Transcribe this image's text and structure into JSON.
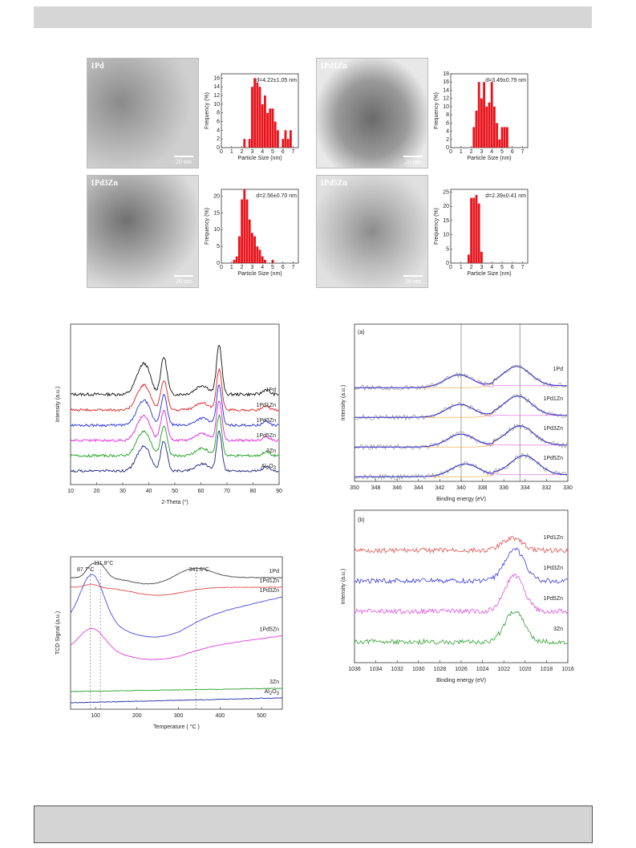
{
  "tem_panels": [
    {
      "label": "1Pd",
      "scale": "20 nm",
      "annotation": "d=4.22±1.05 nm",
      "chart_data": {
        "type": "bar",
        "xlabel": "Particle Size (nm)",
        "ylabel": "Frequency (%)",
        "xlim": [
          0,
          7.5
        ],
        "ylim": [
          0,
          17
        ],
        "xticks": [
          0,
          1,
          2,
          3,
          4,
          5,
          6,
          7
        ],
        "yticks": [
          0,
          2,
          4,
          6,
          8,
          10,
          12,
          14,
          16
        ],
        "x": [
          2.25,
          2.75,
          3.0,
          3.25,
          3.5,
          3.75,
          4.0,
          4.25,
          4.5,
          4.75,
          5.0,
          5.25,
          5.5,
          6.0,
          6.25,
          6.5,
          6.75
        ],
        "values": [
          2,
          2,
          14,
          16,
          15,
          14,
          10,
          12,
          8,
          9,
          9,
          6,
          4,
          2,
          4,
          2,
          4
        ]
      }
    },
    {
      "label": "1Pd1Zn",
      "scale": "20 nm",
      "annotation": "d=3.49±0.79 nm",
      "chart_data": {
        "type": "bar",
        "xlabel": "Particle Size (nm)",
        "ylabel": "Frequency (%)",
        "xlim": [
          0,
          7.5
        ],
        "ylim": [
          0,
          18
        ],
        "xticks": [
          0,
          1,
          2,
          3,
          4,
          5,
          6,
          7
        ],
        "yticks": [
          0,
          2,
          4,
          6,
          8,
          10,
          12,
          14,
          16,
          18
        ],
        "x": [
          2.25,
          2.5,
          2.75,
          3.0,
          3.25,
          3.5,
          3.75,
          4.0,
          4.25,
          4.5,
          4.75,
          5.0,
          5.25,
          5.5
        ],
        "values": [
          5,
          9,
          16,
          12,
          16,
          10,
          11,
          16,
          10,
          6,
          2,
          5,
          5,
          5
        ]
      }
    },
    {
      "label": "1Pd3Zn",
      "scale": "20 nm",
      "annotation": "d=2.56±0.70 nm",
      "chart_data": {
        "type": "bar",
        "xlabel": "Particle Size (nm)",
        "ylabel": "Frequency (%)",
        "xlim": [
          0,
          7.5
        ],
        "ylim": [
          0,
          22
        ],
        "xticks": [
          0,
          1,
          2,
          3,
          4,
          5,
          6,
          7
        ],
        "yticks": [
          0,
          5,
          10,
          15,
          20
        ],
        "x": [
          1.25,
          1.5,
          1.75,
          2.0,
          2.25,
          2.5,
          2.75,
          3.0,
          3.25,
          3.5,
          3.75,
          4.0,
          4.25,
          5.0
        ],
        "values": [
          1,
          2,
          8,
          19,
          22,
          19,
          13,
          9,
          8,
          5,
          4,
          2,
          1,
          1
        ]
      }
    },
    {
      "label": "1Pd5Zn",
      "scale": "20 nm",
      "annotation": "d=2.39±0.41 nm",
      "chart_data": {
        "type": "bar",
        "xlabel": "Particle Size (nm)",
        "ylabel": "Frequency (%)",
        "xlim": [
          0,
          7.5
        ],
        "ylim": [
          0,
          26
        ],
        "xticks": [
          0,
          1,
          2,
          3,
          4,
          5,
          6,
          7
        ],
        "yticks": [
          0,
          5,
          10,
          15,
          20,
          25
        ],
        "x": [
          1.75,
          2.0,
          2.25,
          2.5,
          2.75,
          3.0
        ],
        "values": [
          3,
          23,
          23,
          24,
          21,
          4
        ]
      }
    }
  ],
  "xrd": {
    "chart_data": {
      "type": "line",
      "xlabel": "2-Theta (°)",
      "ylabel": "Intensity (a.u.)",
      "xlim": [
        10,
        90
      ],
      "xticks": [
        10,
        20,
        30,
        40,
        50,
        60,
        70,
        80,
        90
      ],
      "series": [
        {
          "name": "1Pd",
          "color": "#111111"
        },
        {
          "name": "1Pd1Zn",
          "color": "#e02020"
        },
        {
          "name": "1Pd3Zn",
          "color": "#1e2fd8"
        },
        {
          "name": "1Pd5Zn",
          "color": "#e020e0"
        },
        {
          "name": "3Zn",
          "color": "#18a018"
        },
        {
          "name": "Al2O3",
          "color": "#1a237e"
        }
      ],
      "peaks": [
        {
          "x": 37,
          "h": 0.45,
          "w": 2.2
        },
        {
          "x": 39.5,
          "h": 0.3,
          "w": 1.8
        },
        {
          "x": 45.8,
          "h": 0.75,
          "w": 1.2
        },
        {
          "x": 60.5,
          "h": 0.18,
          "w": 2.5
        },
        {
          "x": 67,
          "h": 1.0,
          "w": 1.0
        },
        {
          "x": 85,
          "h": 0.1,
          "w": 1.2
        }
      ]
    }
  },
  "xps_pd": {
    "panel_label": "(a)",
    "chart_data": {
      "type": "line",
      "xlabel": "Binding energy (eV)",
      "ylabel": "Intensity (a.u.)",
      "xlim": [
        350,
        330
      ],
      "xticks": [
        350,
        348,
        346,
        344,
        342,
        340,
        338,
        336,
        334,
        332,
        330
      ],
      "ref_lines": [
        340.0,
        334.5
      ],
      "series": [
        {
          "name": "1Pd",
          "peaks": [
            340.2,
            334.8
          ]
        },
        {
          "name": "1Pd1Zn",
          "peaks": [
            340.1,
            334.7
          ]
        },
        {
          "name": "1Pd3Zn",
          "peaks": [
            340.0,
            334.5
          ]
        },
        {
          "name": "1Pd5Zn",
          "peaks": [
            339.6,
            334.1
          ]
        }
      ]
    }
  },
  "xps_zn": {
    "panel_label": "(b)",
    "chart_data": {
      "type": "line",
      "xlabel": "Binding energy (eV)",
      "ylabel": "Intensity (a.u.)",
      "xlim": [
        1036,
        1016
      ],
      "xticks": [
        1036,
        1034,
        1032,
        1030,
        1028,
        1026,
        1024,
        1022,
        1020,
        1018,
        1016
      ],
      "series": [
        {
          "name": "1Pd1Zn",
          "color": "#e05050",
          "peak": 1021.2,
          "h": 0.35
        },
        {
          "name": "1Pd3Zn",
          "color": "#3a3ad8",
          "peak": 1021.0,
          "h": 0.9
        },
        {
          "name": "1Pd5Zn",
          "color": "#e050e0",
          "peak": 1021.0,
          "h": 1.0
        },
        {
          "name": "3Zn",
          "color": "#30a030",
          "peak": 1021.0,
          "h": 0.85
        }
      ]
    }
  },
  "tpr": {
    "chart_data": {
      "type": "line",
      "xlabel": "Temperature ( °C )",
      "ylabel": "TCD Signal (a.u.)",
      "xlim": [
        40,
        550
      ],
      "xticks": [
        100,
        200,
        300,
        400,
        500
      ],
      "annotations": [
        {
          "text": "87.7°C",
          "x": 87.7
        },
        {
          "text": "111.8°C",
          "x": 111.8
        },
        {
          "text": "341.6°C",
          "x": 341.6
        }
      ],
      "series": [
        {
          "name": "1Pd",
          "color": "#444444"
        },
        {
          "name": "1Pd1Zn",
          "color": "#e05050"
        },
        {
          "name": "1Pd3Zn",
          "color": "#4a4ae0"
        },
        {
          "name": "1Pd5Zn",
          "color": "#e040e0"
        },
        {
          "name": "3Zn",
          "color": "#30a030"
        },
        {
          "name": "Al2O3",
          "color": "#2030a0"
        }
      ]
    }
  }
}
